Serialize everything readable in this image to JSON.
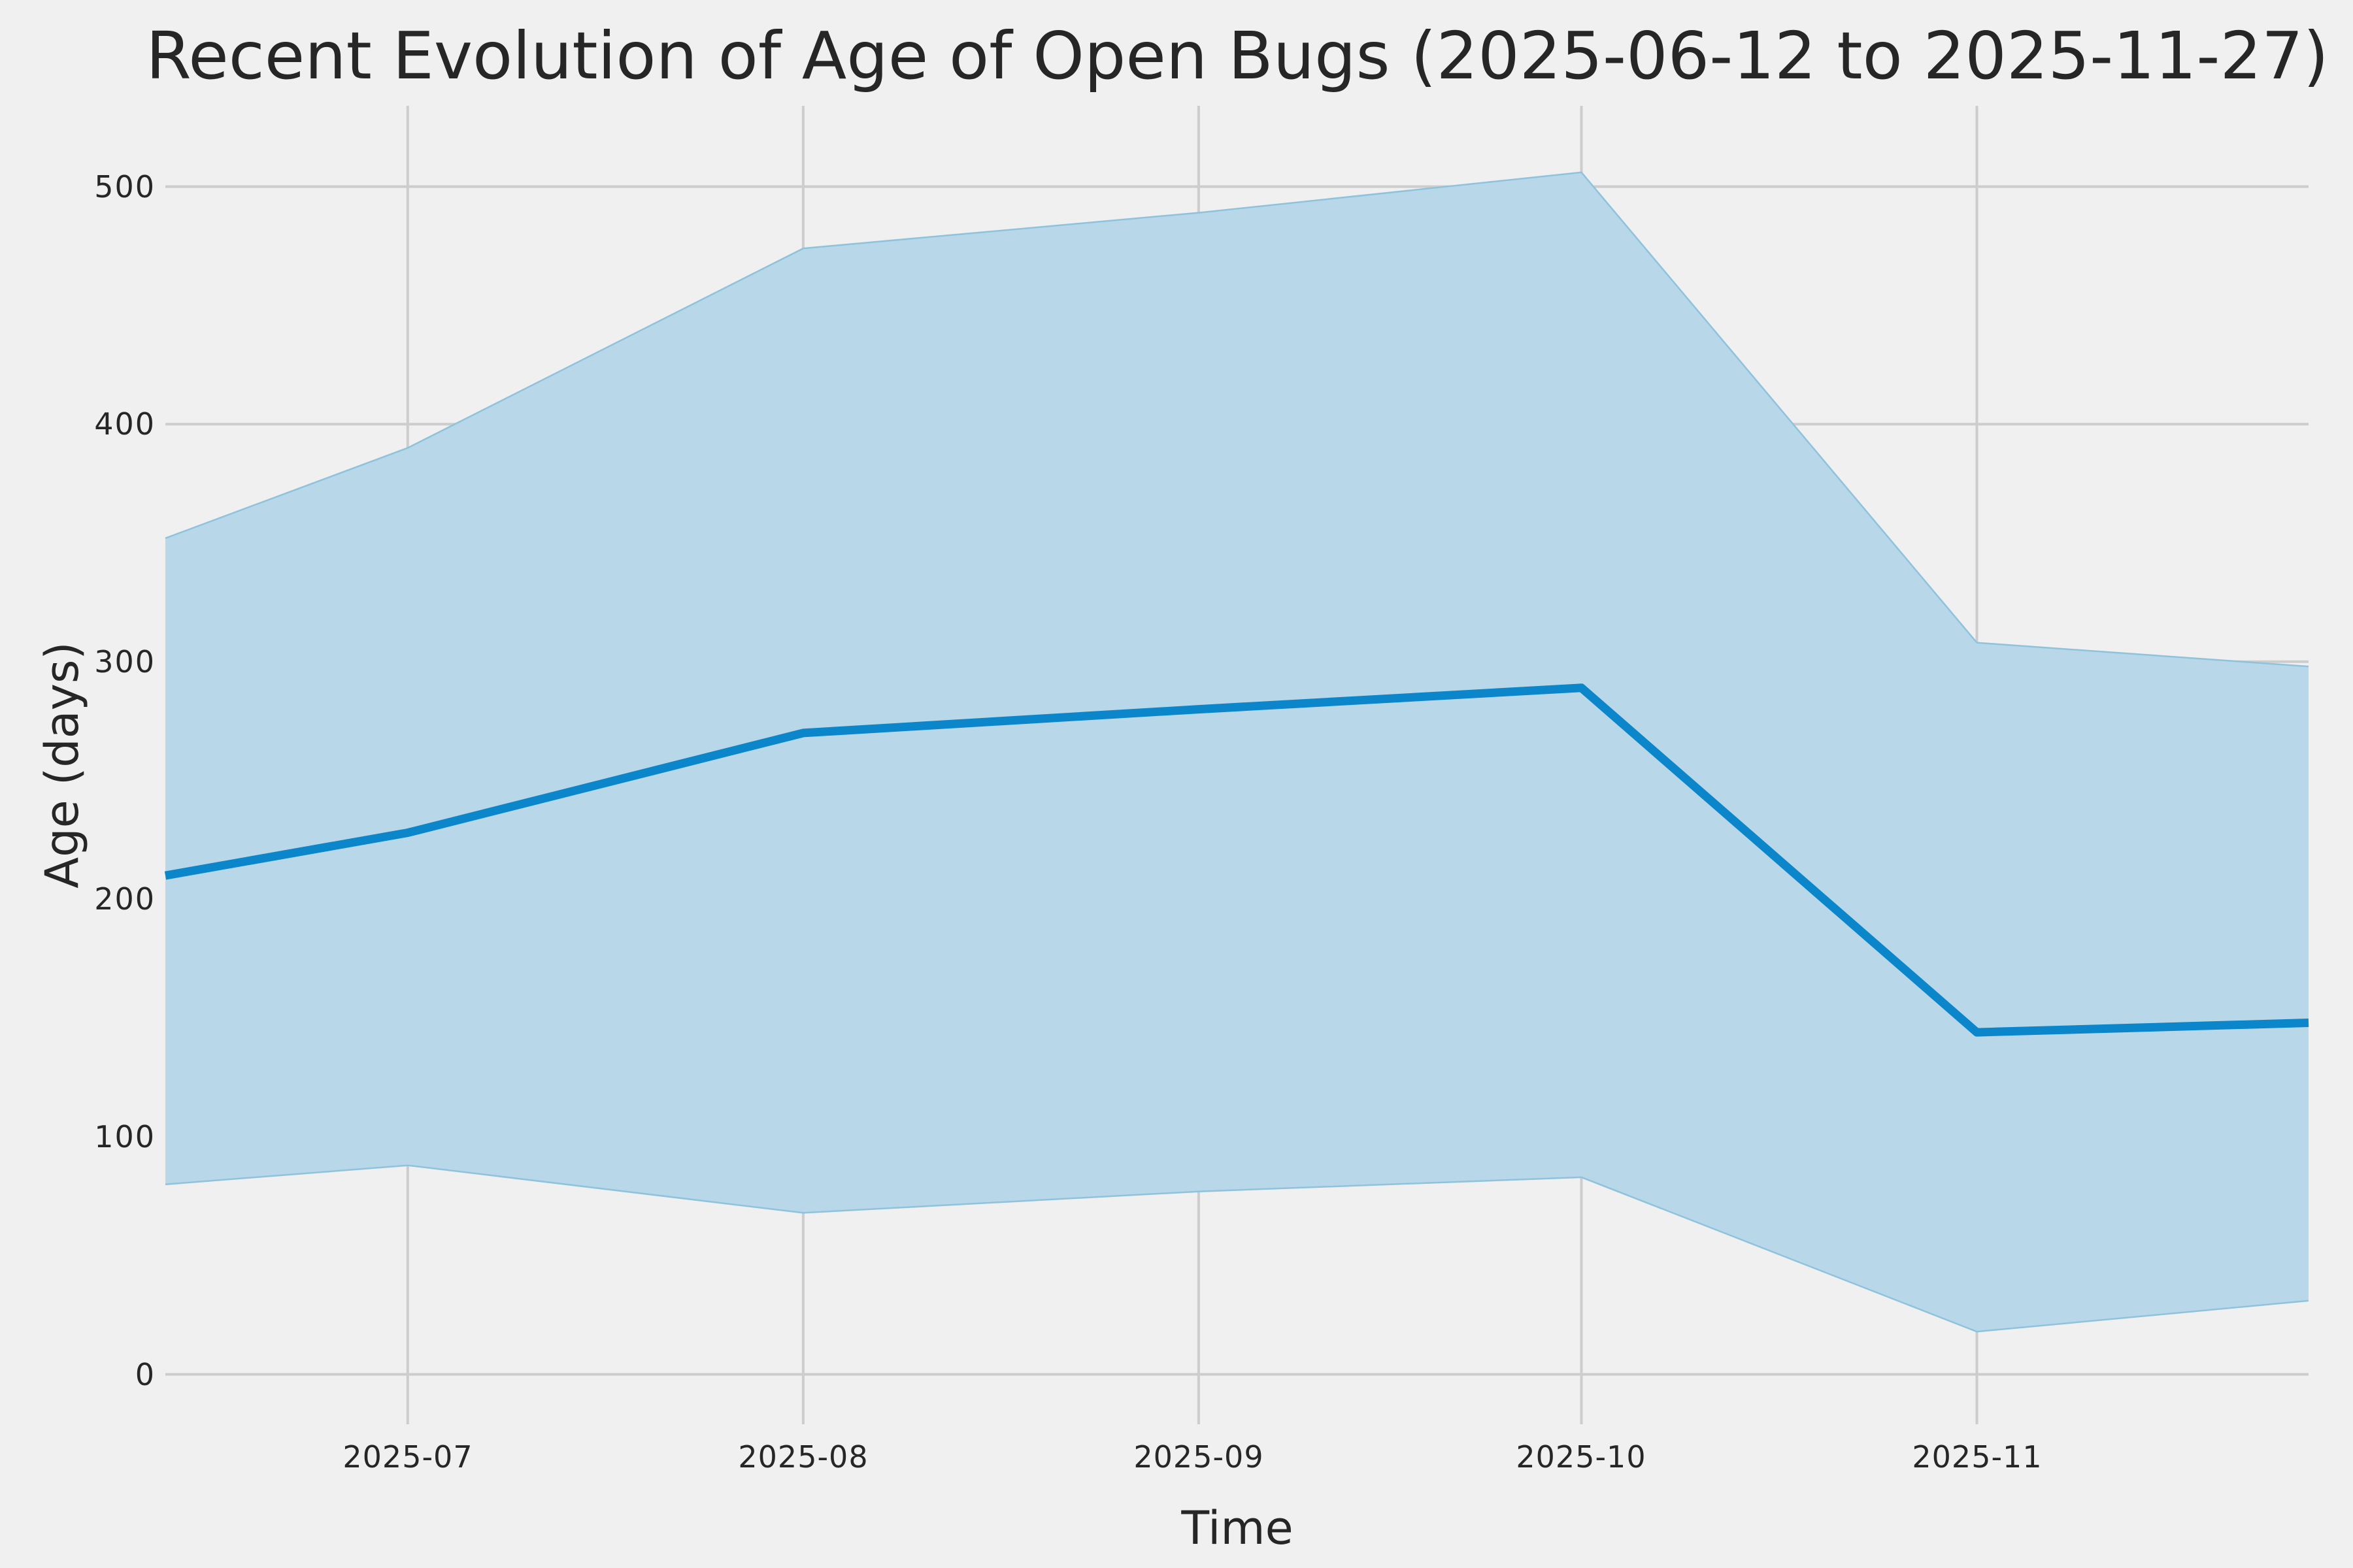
{
  "figure": {
    "background_color": "#f0f0f0"
  },
  "chart_data": {
    "type": "line",
    "title": "Recent Evolution of Age of Open Bugs (2025-06-12 to 2025-11-27)",
    "xlabel": "Time",
    "ylabel": "Age (days)",
    "date_range": [
      "2025-06-12",
      "2025-11-27"
    ],
    "x": [
      "2025-06-12",
      "2025-07-01",
      "2025-08-01",
      "2025-09-01",
      "2025-10-01",
      "2025-11-01",
      "2025-11-27"
    ],
    "series": [
      {
        "name": "mean-age",
        "role": "line",
        "values": [
          210,
          228,
          270,
          280,
          289,
          144,
          148
        ]
      },
      {
        "name": "band-upper",
        "role": "band-upper",
        "values": [
          352,
          390,
          474,
          489,
          506,
          308,
          298
        ]
      },
      {
        "name": "band-lower",
        "role": "band-lower",
        "values": [
          80,
          88,
          68,
          77,
          83,
          18,
          31
        ]
      }
    ],
    "ylim": [
      -21,
      534
    ],
    "yticks": [
      0,
      100,
      200,
      300,
      400,
      500
    ],
    "xticks": [
      {
        "label": "2025-07",
        "date": "2025-07-01"
      },
      {
        "label": "2025-08",
        "date": "2025-08-01"
      },
      {
        "label": "2025-09",
        "date": "2025-09-01"
      },
      {
        "label": "2025-10",
        "date": "2025-10-01"
      },
      {
        "label": "2025-11",
        "date": "2025-11-01"
      }
    ],
    "grid": true,
    "legend": false,
    "colors": {
      "line": "#0b86ca",
      "band_fill": "#b8d8e9",
      "band_edge": "#8ec2dd",
      "grid": "#cdcdcd",
      "text": "#262626",
      "background": "#f0f0f0"
    }
  }
}
